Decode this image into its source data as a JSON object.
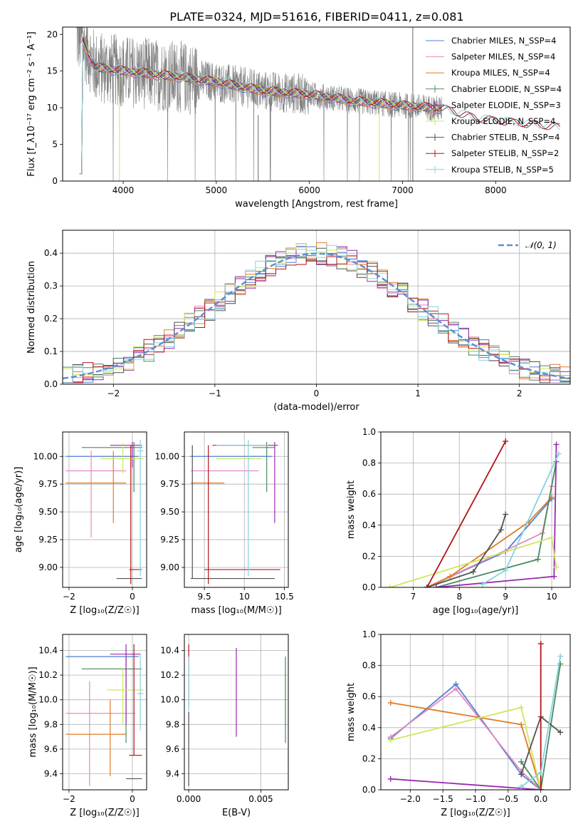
{
  "figure_title": "PLATE=0324, MJD=51616, FIBERID=0411, z=0.081",
  "colors": {
    "Chabrier MILES": "#4f7fd6",
    "Salpeter MILES": "#e48bbf",
    "Kroupa MILES": "#e07b26",
    "Chabrier ELODIE": "#4b8a5e",
    "Salpeter ELODIE": "#9a28b3",
    "Kroupa ELODIE": "#cde85a",
    "Chabrier STELIB": "#525252",
    "Salpeter STELIB": "#b3141a",
    "Kroupa STELIB": "#85d3de",
    "data": "#808080",
    "normal": "#5b8fd6",
    "grid": "#b0b0b0"
  },
  "chart_data": [
    {
      "type": "line",
      "xlabel": "wavelength [Angstrom, rest frame]",
      "ylabel": "Flux [f_λ10⁻¹⁷ erg cm⁻² s⁻¹ A⁻¹]",
      "xlim": [
        3350,
        8800
      ],
      "ylim": [
        0,
        21
      ],
      "xticks": [
        4000,
        5000,
        6000,
        7000,
        8000
      ],
      "yticks": [
        0,
        5,
        10,
        15,
        20
      ],
      "grid": false,
      "legend_position": "top-right",
      "legend": [
        "Chabrier MILES, N_SSP=4",
        "Salpeter MILES, N_SSP=4",
        "Kroupa MILES, N_SSP=4",
        "Chabrier ELODIE, N_SSP=4",
        "Salpeter ELODIE, N_SSP=3",
        "Kroupa ELODIE, N_SSP=4",
        "Chabrier STELIB, N_SSP=4",
        "Salpeter STELIB, N_SSP=2",
        "Kroupa STELIB, N_SSP=5"
      ],
      "continuum": {
        "x": [
          3550,
          3700,
          4000,
          4300,
          4600,
          5000,
          5500,
          6000,
          6500,
          7000,
          7400,
          7800,
          8300,
          8700
        ],
        "y": [
          19.5,
          15.5,
          15,
          14.6,
          14.2,
          13.5,
          12.3,
          11.8,
          10.9,
          10.3,
          9.9,
          8.4,
          7.7,
          7.2
        ]
      }
    },
    {
      "type": "line",
      "xlabel": "(data-model)/error",
      "ylabel": "Normed distribution",
      "xlim": [
        -2.5,
        2.5
      ],
      "ylim": [
        0,
        0.47
      ],
      "xticks": [
        -2,
        -1,
        0,
        1,
        2
      ],
      "yticks": [
        0.0,
        0.1,
        0.2,
        0.3,
        0.4
      ],
      "grid": true,
      "legend_position": "top-right",
      "legend": [
        "𝒩(0, 1)"
      ]
    },
    {
      "type": "scatter",
      "xlabel": "Z [log₁₀(Z/Z☉)]",
      "ylabel": "age  [log₁₀(age/yr)]",
      "xlim": [
        -2.2,
        0.45
      ],
      "ylim": [
        8.82,
        10.22
      ],
      "xticks": [
        -2,
        0
      ],
      "yticks": [
        9.0,
        9.25,
        9.5,
        9.75,
        10.0
      ],
      "grid": true,
      "points": [
        {
          "model": "Chabrier MILES",
          "x": -0.95,
          "xlo": -2.1,
          "xhi": 0.2,
          "y": 10.0,
          "ylo": 10.0,
          "yhi": 10.0
        },
        {
          "model": "Salpeter MILES",
          "x": -1.3,
          "xlo": -2.1,
          "xhi": -0.2,
          "y": 9.87,
          "ylo": 9.27,
          "yhi": 10.05
        },
        {
          "model": "Kroupa MILES",
          "x": -0.6,
          "xlo": -2.1,
          "xhi": -0.2,
          "y": 9.76,
          "ylo": 9.4,
          "yhi": 10.05
        },
        {
          "model": "Chabrier ELODIE",
          "x": 0.05,
          "xlo": -1.6,
          "xhi": 0.32,
          "y": 10.08,
          "ylo": 9.68,
          "yhi": 10.13
        },
        {
          "model": "Salpeter ELODIE",
          "x": 0.0,
          "xlo": -0.7,
          "xhi": 0.3,
          "y": 10.1,
          "ylo": 9.9,
          "yhi": 10.13
        },
        {
          "model": "Kroupa ELODIE",
          "x": -0.3,
          "xlo": -1.0,
          "xhi": 0.35,
          "y": 9.98,
          "ylo": 9.85,
          "yhi": 10.12
        },
        {
          "model": "Chabrier STELIB",
          "x": 0.0,
          "xlo": -0.5,
          "xhi": 0.3,
          "y": 8.9,
          "ylo": 8.9,
          "yhi": 8.9
        },
        {
          "model": "Salpeter STELIB",
          "x": -0.05,
          "xlo": -0.1,
          "xhi": 0.3,
          "y": 8.98,
          "ylo": 8.85,
          "yhi": 10.1
        },
        {
          "model": "Kroupa STELIB",
          "x": 0.25,
          "xlo": 0.15,
          "xhi": 0.35,
          "y": 10.05,
          "ylo": 8.92,
          "yhi": 10.15
        }
      ]
    },
    {
      "type": "scatter",
      "xlabel": "mass [log₁₀(M/M☉)]",
      "ylabel": "",
      "xlim": [
        9.25,
        10.55
      ],
      "ylim": [
        8.82,
        10.22
      ],
      "xticks": [
        9.5,
        10.0,
        10.5
      ],
      "yticks": [
        9.0,
        9.25,
        9.5,
        9.75,
        10.0
      ],
      "grid": true,
      "points": [
        {
          "model": "Chabrier MILES",
          "x": 9.95,
          "xlo": 9.32,
          "xhi": 10.35,
          "y": 10.0,
          "ylo": 10.0,
          "yhi": 10.0
        },
        {
          "model": "Salpeter MILES",
          "x": 9.9,
          "xlo": 9.33,
          "xhi": 10.18,
          "y": 9.87,
          "ylo": 9.87,
          "yhi": 9.87
        },
        {
          "model": "Kroupa MILES",
          "x": 9.72,
          "xlo": 9.33,
          "xhi": 9.75,
          "y": 9.76,
          "ylo": 9.76,
          "yhi": 9.76
        },
        {
          "model": "Chabrier ELODIE",
          "x": 10.28,
          "xlo": 10.1,
          "xhi": 10.38,
          "y": 10.08,
          "ylo": 9.68,
          "yhi": 10.13
        },
        {
          "model": "Salpeter ELODIE",
          "x": 10.38,
          "xlo": 9.6,
          "xhi": 10.42,
          "y": 10.1,
          "ylo": 9.4,
          "yhi": 10.13
        },
        {
          "model": "Kroupa ELODIE",
          "x": 10.1,
          "xlo": 9.65,
          "xhi": 10.22,
          "y": 9.98,
          "ylo": 9.98,
          "yhi": 9.98
        },
        {
          "model": "Chabrier STELIB",
          "x": 9.35,
          "xlo": 9.33,
          "xhi": 10.38,
          "y": 8.9,
          "ylo": 8.9,
          "yhi": 10.1
        },
        {
          "model": "Salpeter STELIB",
          "x": 9.55,
          "xlo": 9.5,
          "xhi": 10.45,
          "y": 8.98,
          "ylo": 8.85,
          "yhi": 10.1
        },
        {
          "model": "Kroupa STELIB",
          "x": 10.05,
          "xlo": 9.65,
          "xhi": 10.3,
          "y": 10.1,
          "ylo": 8.92,
          "yhi": 10.15
        }
      ]
    },
    {
      "type": "line",
      "xlabel": "age  [log₁₀(age/yr)]",
      "ylabel": "mass weight",
      "xlim": [
        6.3,
        10.4
      ],
      "ylim": [
        0,
        1.0
      ],
      "xticks": [
        7,
        8,
        9,
        10
      ],
      "yticks": [
        0.0,
        0.2,
        0.4,
        0.6,
        0.8,
        1.0
      ],
      "grid": true,
      "series": [
        {
          "model": "Chabrier MILES",
          "x": [
            7.3,
            9.0,
            10.0
          ],
          "y": [
            0.0,
            0.23,
            0.57
          ]
        },
        {
          "model": "Salpeter MILES",
          "x": [
            7.3,
            9.8,
            10.0
          ],
          "y": [
            0.0,
            0.35,
            0.65
          ]
        },
        {
          "model": "Kroupa MILES",
          "x": [
            7.3,
            7.8,
            9.5,
            10.0
          ],
          "y": [
            0.0,
            0.07,
            0.42,
            0.58
          ]
        },
        {
          "model": "Chabrier ELODIE",
          "x": [
            7.5,
            9.7,
            10.1
          ],
          "y": [
            0.0,
            0.18,
            0.81
          ]
        },
        {
          "model": "Salpeter ELODIE",
          "x": [
            7.5,
            10.05,
            10.1
          ],
          "y": [
            0.0,
            0.07,
            0.92
          ]
        },
        {
          "model": "Kroupa ELODIE",
          "x": [
            6.5,
            10.0,
            10.1
          ],
          "y": [
            0.0,
            0.32,
            0.13
          ]
        },
        {
          "model": "Chabrier STELIB",
          "x": [
            7.3,
            8.3,
            8.9,
            9.0
          ],
          "y": [
            0.0,
            0.1,
            0.37,
            0.47
          ]
        },
        {
          "model": "Salpeter STELIB",
          "x": [
            7.3,
            9.0
          ],
          "y": [
            0.0,
            0.94
          ]
        },
        {
          "model": "Kroupa STELIB",
          "x": [
            8.5,
            9.0,
            10.15
          ],
          "y": [
            0.02,
            0.11,
            0.86
          ]
        }
      ]
    },
    {
      "type": "scatter",
      "xlabel": "Z [log₁₀(Z/Z☉)]",
      "ylabel": "mass [log₁₀(M/M☉)]",
      "xlim": [
        -2.2,
        0.45
      ],
      "ylim": [
        9.27,
        10.53
      ],
      "xticks": [
        -2,
        0
      ],
      "yticks": [
        9.4,
        9.6,
        9.8,
        10.0,
        10.2,
        10.4
      ],
      "grid": true,
      "points": [
        {
          "model": "Chabrier MILES",
          "x": -0.95,
          "xlo": -2.1,
          "xhi": 0.2,
          "y": 10.35,
          "ylo": 10.35,
          "yhi": 10.35
        },
        {
          "model": "Salpeter MILES",
          "x": -1.35,
          "xlo": -2.1,
          "xhi": 0.1,
          "y": 9.89,
          "ylo": 9.3,
          "yhi": 10.15
        },
        {
          "model": "Kroupa MILES",
          "x": -0.7,
          "xlo": -2.1,
          "xhi": -0.2,
          "y": 9.72,
          "ylo": 9.38,
          "yhi": 10.0
        },
        {
          "model": "Chabrier ELODIE",
          "x": -0.2,
          "xlo": -1.6,
          "xhi": 0.3,
          "y": 10.25,
          "ylo": 9.65,
          "yhi": 10.35
        },
        {
          "model": "Salpeter ELODIE",
          "x": -0.2,
          "xlo": -0.7,
          "xhi": 0.25,
          "y": 10.37,
          "ylo": 9.8,
          "yhi": 10.45
        },
        {
          "model": "Kroupa ELODIE",
          "x": -0.3,
          "xlo": -0.8,
          "xhi": 0.35,
          "y": 10.08,
          "ylo": 9.8,
          "yhi": 10.25
        },
        {
          "model": "Chabrier STELIB",
          "x": 0.0,
          "xlo": -0.2,
          "xhi": 0.3,
          "y": 9.36,
          "ylo": 9.36,
          "yhi": 9.36
        },
        {
          "model": "Salpeter STELIB",
          "x": 0.05,
          "xlo": -0.1,
          "xhi": 0.3,
          "y": 9.55,
          "ylo": 9.55,
          "yhi": 10.45
        },
        {
          "model": "Kroupa STELIB",
          "x": 0.25,
          "xlo": 0.15,
          "xhi": 0.35,
          "y": 10.05,
          "ylo": 9.75,
          "yhi": 10.38
        }
      ]
    },
    {
      "type": "scatter",
      "xlabel": "E(B-V)",
      "ylabel": "",
      "xlim": [
        -0.0003,
        0.0069
      ],
      "ylim": [
        9.27,
        10.53
      ],
      "xticks": [
        0.0,
        0.005
      ],
      "xticklabels": [
        "0.000",
        "0.005"
      ],
      "yticks": [
        9.4,
        9.6,
        9.8,
        10.0,
        10.2,
        10.4
      ],
      "grid": true,
      "points": [
        {
          "model": "Salpeter STELIB",
          "x": 0.0,
          "y": 10.2,
          "ylo": 9.95,
          "yhi": 10.45
        },
        {
          "model": "Kroupa STELIB",
          "x": 0.0,
          "y": 9.8,
          "ylo": 9.35,
          "yhi": 10.35
        },
        {
          "model": "Chabrier STELIB",
          "x": 0.0,
          "y": 9.6,
          "ylo": 9.3,
          "yhi": 9.9
        },
        {
          "model": "Salpeter ELODIE",
          "x": 0.0033,
          "y": 10.05,
          "ylo": 9.7,
          "yhi": 10.42
        },
        {
          "model": "Kroupa ELODIE",
          "x": 0.0067,
          "y": 10.0,
          "ylo": 9.8,
          "yhi": 10.33
        },
        {
          "model": "Chabrier ELODIE",
          "x": 0.0067,
          "y": 9.95,
          "ylo": 9.65,
          "yhi": 10.35
        }
      ]
    },
    {
      "type": "line",
      "xlabel": "Z [log₁₀(Z/Z☉)]",
      "ylabel": "mass weight",
      "xlim": [
        -2.45,
        0.45
      ],
      "ylim": [
        0,
        1.0
      ],
      "xticks": [
        -2.0,
        -1.5,
        -1.0,
        -0.5,
        0.0
      ],
      "xticklabels": [
        "−2.0",
        "−1.5",
        "−1.0",
        "−0.5",
        "0.0"
      ],
      "yticks": [
        0.0,
        0.2,
        0.4,
        0.6,
        0.8,
        1.0
      ],
      "grid": true,
      "series": [
        {
          "model": "Chabrier MILES",
          "x": [
            -2.3,
            -1.3,
            -0.3,
            0.0
          ],
          "y": [
            0.33,
            0.68,
            0.1,
            0.0
          ]
        },
        {
          "model": "Salpeter MILES",
          "x": [
            -2.3,
            -1.3,
            -0.3,
            0.0
          ],
          "y": [
            0.34,
            0.65,
            0.12,
            0.0
          ]
        },
        {
          "model": "Kroupa MILES",
          "x": [
            -2.3,
            -0.3,
            0.0
          ],
          "y": [
            0.56,
            0.42,
            0.0
          ]
        },
        {
          "model": "Chabrier ELODIE",
          "x": [
            -0.3,
            0.0,
            0.3
          ],
          "y": [
            0.18,
            0.0,
            0.81
          ]
        },
        {
          "model": "Salpeter ELODIE",
          "x": [
            -2.3,
            0.0
          ],
          "y": [
            0.07,
            0.0
          ]
        },
        {
          "model": "Kroupa ELODIE",
          "x": [
            -2.3,
            -0.3,
            0.0
          ],
          "y": [
            0.32,
            0.53,
            0.0
          ]
        },
        {
          "model": "Chabrier STELIB",
          "x": [
            -0.3,
            0.0,
            0.3
          ],
          "y": [
            0.1,
            0.47,
            0.37
          ]
        },
        {
          "model": "Salpeter STELIB",
          "x": [
            0.0,
            0.0
          ],
          "y": [
            0.0,
            0.94
          ]
        },
        {
          "model": "Kroupa STELIB",
          "x": [
            -0.3,
            0.0,
            0.3
          ],
          "y": [
            0.02,
            0.11,
            0.86
          ]
        }
      ]
    }
  ]
}
